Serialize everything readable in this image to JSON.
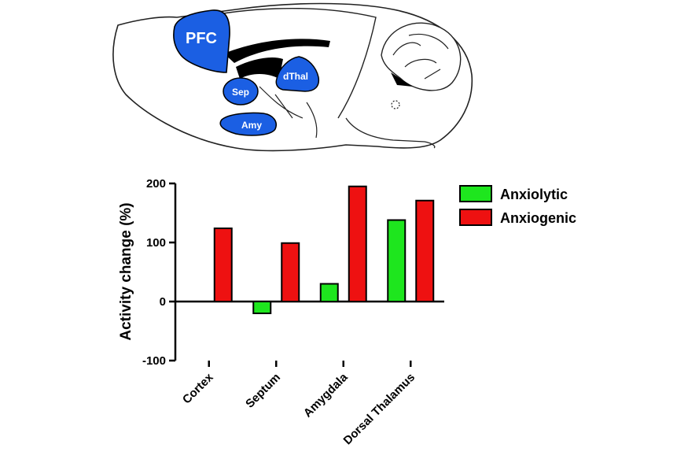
{
  "brain": {
    "regions": {
      "pfc": "PFC",
      "sep": "Sep",
      "dthal": "dThal",
      "amy": "Amy"
    },
    "region_color": "#1b5fe3"
  },
  "chart_data": {
    "type": "bar",
    "categories": [
      "Cortex",
      "Septum",
      "Amygdala",
      "Dorsal Thalamus"
    ],
    "series": [
      {
        "name": "Anxiolytic",
        "color": "#1ee61e",
        "values": [
          null,
          -20,
          30,
          138
        ]
      },
      {
        "name": "Anxiogenic",
        "color": "#ee1111",
        "values": [
          124,
          99,
          195,
          171
        ]
      }
    ],
    "ylabel": "Activity change (%)",
    "xlabel": "",
    "ylim": [
      -100,
      200
    ],
    "yticks": [
      -100,
      0,
      100,
      200
    ],
    "yticks_labels": [
      "-100",
      "0",
      "100",
      "200"
    ],
    "grid": false,
    "legend_position": "top-right"
  }
}
